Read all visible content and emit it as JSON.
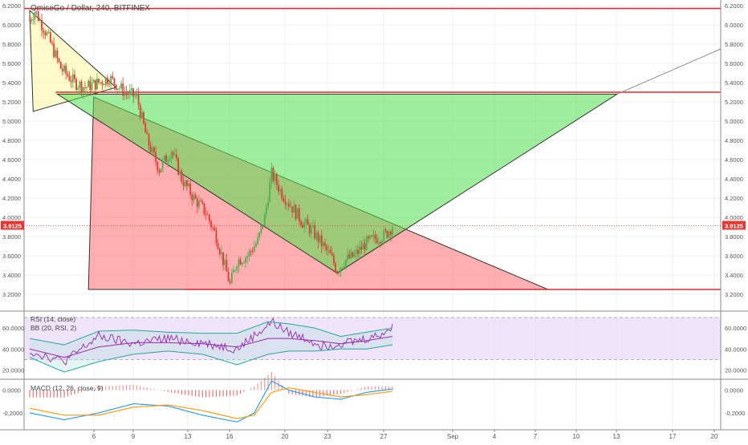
{
  "header": {
    "title": "OmiseGo / Dollar, 240, BITFINEX"
  },
  "chart_data": [
    {
      "type": "candlestick",
      "title": "OmiseGo / Dollar, 240, BITFINEX",
      "ylim": [
        3.2,
        6.2
      ],
      "yticks": [
        "6.2000",
        "6.0000",
        "5.8000",
        "5.6000",
        "5.4000",
        "5.2000",
        "5.0000",
        "4.8000",
        "4.6000",
        "4.4000",
        "4.2000",
        "4.0000",
        "3.8000",
        "3.6000",
        "3.4000",
        "3.2000"
      ],
      "xticks": [
        "6",
        "9",
        "13",
        "16",
        "20",
        "23",
        "27",
        "Sep",
        "4",
        "7",
        "10",
        "13",
        "17",
        "20"
      ],
      "last_price": "3.9125",
      "series": [
        {
          "name": "candles",
          "waypoints": [
            [
              0,
              6.05
            ],
            [
              3,
              6.15
            ],
            [
              10,
              5.9
            ],
            [
              18,
              5.55
            ],
            [
              26,
              5.4
            ],
            [
              32,
              5.35
            ],
            [
              40,
              5.4
            ],
            [
              46,
              5.45
            ],
            [
              55,
              5.3
            ],
            [
              62,
              5.25
            ],
            [
              68,
              4.8
            ],
            [
              75,
              4.5
            ],
            [
              82,
              4.7
            ],
            [
              88,
              4.4
            ],
            [
              95,
              4.2
            ],
            [
              102,
              4.05
            ],
            [
              108,
              3.8
            ],
            [
              112,
              3.55
            ],
            [
              116,
              3.3
            ],
            [
              120,
              3.55
            ],
            [
              126,
              3.6
            ],
            [
              132,
              3.75
            ],
            [
              136,
              4.0
            ],
            [
              140,
              4.45
            ],
            [
              146,
              4.25
            ],
            [
              152,
              4.1
            ],
            [
              158,
              3.95
            ],
            [
              164,
              3.85
            ],
            [
              170,
              3.7
            ],
            [
              174,
              3.6
            ],
            [
              178,
              3.45
            ],
            [
              182,
              3.55
            ],
            [
              188,
              3.6
            ],
            [
              194,
              3.72
            ],
            [
              200,
              3.78
            ],
            [
              206,
              3.82
            ],
            [
              210,
              3.91
            ]
          ]
        }
      ],
      "drawings": [
        {
          "kind": "horizontal-line",
          "y": 6.17
        },
        {
          "kind": "horizontal-line",
          "y": 5.3
        },
        {
          "kind": "horizontal-line",
          "y": 3.25
        },
        {
          "kind": "triangle",
          "fill": "#fff59d",
          "points": [
            [
              0,
              6.15
            ],
            [
              2,
              5.1
            ],
            [
              50,
              5.35
            ]
          ]
        },
        {
          "kind": "triangle",
          "fill": "#ff6e6e",
          "points": [
            [
              37,
              5.25
            ],
            [
              34,
              3.25
            ],
            [
              300,
              3.25
            ]
          ]
        },
        {
          "kind": "triangle",
          "fill": "#4ee04e",
          "points": [
            [
              16,
              5.28
            ],
            [
              340,
              5.28
            ],
            [
              178,
              3.42
            ]
          ]
        },
        {
          "kind": "trend-line",
          "points": [
            [
              340,
              5.28
            ],
            [
              400,
              5.75
            ]
          ]
        }
      ]
    },
    {
      "type": "line",
      "title": "RSI (14, close)",
      "subtitle": "BB (20, RSI, 2)",
      "ylim": [
        15,
        70
      ],
      "yticks": [
        "60.0000",
        "40.0000",
        "20.0000"
      ],
      "band": [
        30,
        70
      ],
      "series": [
        {
          "name": "RSI (14, close)",
          "color": "#9c27b0",
          "waypoints": [
            [
              0,
              38
            ],
            [
              20,
              28
            ],
            [
              40,
              52
            ],
            [
              60,
              45
            ],
            [
              80,
              50
            ],
            [
              100,
              46
            ],
            [
              120,
              40
            ],
            [
              136,
              60
            ],
            [
              140,
              66
            ],
            [
              150,
              55
            ],
            [
              160,
              50
            ],
            [
              170,
              43
            ],
            [
              180,
              46
            ],
            [
              190,
              48
            ],
            [
              200,
              52
            ],
            [
              210,
              60
            ]
          ]
        },
        {
          "name": "upper",
          "color": "#26a69a",
          "waypoints": [
            [
              0,
              50
            ],
            [
              20,
              44
            ],
            [
              40,
              57
            ],
            [
              60,
              58
            ],
            [
              80,
              56
            ],
            [
              100,
              55
            ],
            [
              120,
              55
            ],
            [
              138,
              66
            ],
            [
              150,
              64
            ],
            [
              165,
              60
            ],
            [
              180,
              52
            ],
            [
              195,
              56
            ],
            [
              210,
              60
            ]
          ]
        },
        {
          "name": "basis",
          "color": "#9c27b0",
          "waypoints": [
            [
              0,
              40
            ],
            [
              20,
              32
            ],
            [
              40,
              42
            ],
            [
              60,
              46
            ],
            [
              80,
              46
            ],
            [
              100,
              45
            ],
            [
              120,
              42
            ],
            [
              138,
              50
            ],
            [
              150,
              50
            ],
            [
              165,
              48
            ],
            [
              180,
              45
            ],
            [
              195,
              48
            ],
            [
              210,
              52
            ]
          ]
        },
        {
          "name": "lower",
          "color": "#26a69a",
          "waypoints": [
            [
              0,
              32
            ],
            [
              20,
              18
            ],
            [
              40,
              28
            ],
            [
              60,
              35
            ],
            [
              80,
              38
            ],
            [
              100,
              35
            ],
            [
              120,
              25
            ],
            [
              138,
              35
            ],
            [
              150,
              38
            ],
            [
              165,
              38
            ],
            [
              180,
              40
            ],
            [
              195,
              40
            ],
            [
              210,
              44
            ]
          ]
        }
      ]
    },
    {
      "type": "line",
      "title": "MACD (12, 26, close, 9)",
      "ylim": [
        -0.32,
        0.06
      ],
      "yticks": [
        "0.0000",
        "-0.2000"
      ],
      "series": [
        {
          "name": "MACD",
          "color": "#2196f3",
          "waypoints": [
            [
              0,
              -0.2
            ],
            [
              20,
              -0.26
            ],
            [
              40,
              -0.2
            ],
            [
              60,
              -0.12
            ],
            [
              80,
              -0.14
            ],
            [
              100,
              -0.22
            ],
            [
              120,
              -0.28
            ],
            [
              130,
              -0.2
            ],
            [
              140,
              0.08
            ],
            [
              150,
              0.0
            ],
            [
              165,
              -0.06
            ],
            [
              180,
              -0.08
            ],
            [
              195,
              -0.02
            ],
            [
              210,
              0.01
            ]
          ]
        },
        {
          "name": "Signal",
          "color": "#ff9800",
          "waypoints": [
            [
              0,
              -0.16
            ],
            [
              20,
              -0.22
            ],
            [
              40,
              -0.22
            ],
            [
              60,
              -0.15
            ],
            [
              80,
              -0.13
            ],
            [
              100,
              -0.18
            ],
            [
              120,
              -0.25
            ],
            [
              130,
              -0.22
            ],
            [
              140,
              -0.02
            ],
            [
              150,
              0.02
            ],
            [
              165,
              -0.02
            ],
            [
              180,
              -0.06
            ],
            [
              195,
              -0.04
            ],
            [
              210,
              -0.01
            ]
          ]
        }
      ]
    }
  ]
}
